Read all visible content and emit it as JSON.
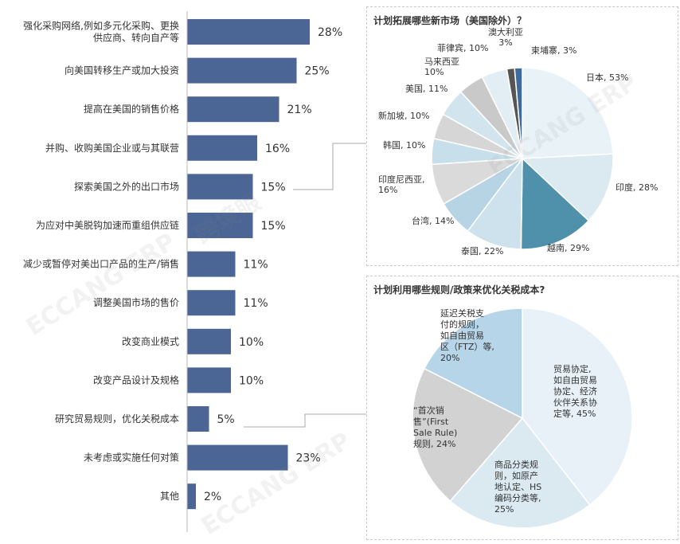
{
  "chart_data": [
    {
      "type": "bar",
      "orientation": "horizontal",
      "categories": [
        [
          "强化采购网络,例如多元化采购、更换",
          "供应商、转向自产等"
        ],
        [
          "向美国转移生产或加大投资"
        ],
        [
          "提高在美国的销售价格"
        ],
        [
          "并购、收购美国企业或与其联营"
        ],
        [
          "探索美国之外的出口市场"
        ],
        [
          "为应对中美脱钩加速而重组供应链"
        ],
        [
          "减少或暂停对美出口产品的生产/销售"
        ],
        [
          "调整美国市场的售价"
        ],
        [
          "改变商业模式"
        ],
        [
          "改变产品设计及规格"
        ],
        [
          "研究贸易规则，优化关税成本"
        ],
        [
          "未考虑或实施任何对策"
        ],
        [
          "其他"
        ]
      ],
      "values": [
        28,
        25,
        21,
        16,
        15,
        15,
        11,
        11,
        10,
        10,
        5,
        23,
        2
      ],
      "value_suffix": "%",
      "bar_color": "#4b6694",
      "xlim": [
        0,
        30
      ]
    },
    {
      "type": "pie",
      "title": "计划拓展哪些新市场（美国除外）？",
      "slices": [
        {
          "label": [
            "日本, 53%"
          ],
          "value": 53,
          "color": "#e9f2f7"
        },
        {
          "label": [
            "印度, 28%"
          ],
          "value": 28,
          "color": "#dbe9f1"
        },
        {
          "label": [
            "越南, 29%"
          ],
          "value": 29,
          "color": "#4f90ab"
        },
        {
          "label": [
            "泰国, 22%"
          ],
          "value": 22,
          "color": "#cde2ed"
        },
        {
          "label": [
            "台湾, 14%"
          ],
          "value": 14,
          "color": "#b6d4e3"
        },
        {
          "label": [
            "印度尼西亚,",
            "16%"
          ],
          "value": 16,
          "color": "#dadada"
        },
        {
          "label": [
            "韩国, 10%"
          ],
          "value": 10,
          "color": "#c6dfea"
        },
        {
          "label": [
            "新加坡, 10%"
          ],
          "value": 10,
          "color": "#d6d6d6"
        },
        {
          "label": [
            "美国, 11%"
          ],
          "value": 11,
          "color": "#d2e5ee"
        },
        {
          "label": [
            "马来西亚",
            "10%"
          ],
          "value": 10,
          "color": "#c9c9c9"
        },
        {
          "label": [
            "菲律宾, 10%"
          ],
          "value": 10,
          "color": "#e2eef4"
        },
        {
          "label": [
            "澳大利亚",
            "3%"
          ],
          "value": 3,
          "color": "#555555"
        },
        {
          "label": [
            "柬埔寨, 3%"
          ],
          "value": 3,
          "color": "#3f6b9a"
        }
      ]
    },
    {
      "type": "pie",
      "title": "计划利用哪些规则/政策来优化关税成本?",
      "slices": [
        {
          "label": [
            "贸易协定,",
            "如自由贸易",
            "协定、经济",
            "伙伴关系协",
            "定等, 45%"
          ],
          "value": 45,
          "color": "#e7f1f7"
        },
        {
          "label": [
            "商品分类规",
            "则，如原产",
            "地认定、HS",
            "编码分类等,",
            "25%"
          ],
          "value": 25,
          "color": "#dbe9f1"
        },
        {
          "label": [
            "“首次销",
            "售”(First",
            "Sale Rule)",
            "规则, 24%"
          ],
          "value": 24,
          "color": "#d2d2d2"
        },
        {
          "label": [
            "延迟关税支",
            "付的规则，",
            "如自由贸易",
            "区（FTZ）等,",
            "20%"
          ],
          "value": 20,
          "color": "#b6d5e8"
        }
      ]
    }
  ],
  "watermark": [
    "ECCANG ERP",
    "跨境眼"
  ]
}
